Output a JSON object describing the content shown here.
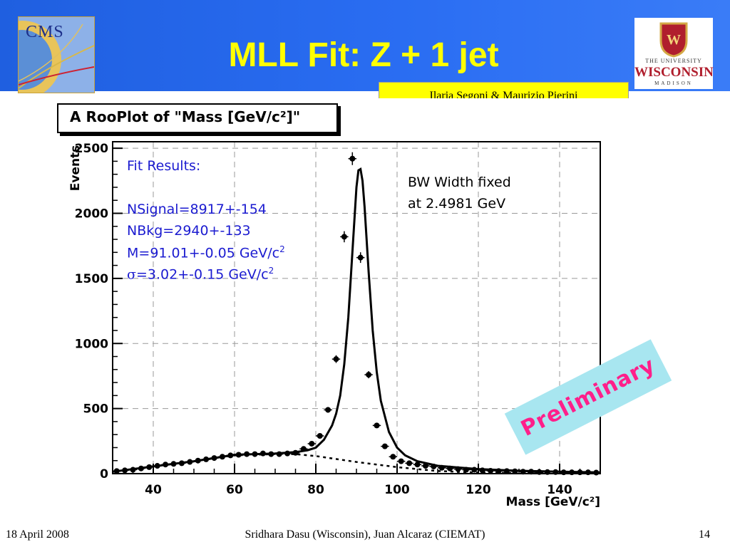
{
  "slide": {
    "title": "MLL Fit: Z + 1 jet",
    "authors": "Ilaria Segoni & Maurizio Pierini",
    "footer_date": "18 April 2008",
    "footer_center": "Sridhara Dasu (Wisconsin), Juan Alcaraz (CIEMAT)",
    "page_number": "14",
    "cms_logo_text": "CMS",
    "uw_logo": {
      "line1": "THE UNIVERSITY",
      "line2": "WISCONSIN",
      "line3": "MADISON",
      "crest_letter": "W"
    },
    "colors": {
      "header": "#2a6df2",
      "title": "#ffff00",
      "authors_bg": "#ffff00",
      "fit_text": "#1b1bd0",
      "preliminary": "#ff1f8a",
      "preliminary_bg": "#a8e6f0"
    }
  },
  "annotations": {
    "fit_results_heading": "Fit Results:",
    "nsignal": "NSignal=8917+-154",
    "nbkg": "NBkg=2940+-133",
    "mass_prefix": "M=91.01+-0.05 GeV/c",
    "sigma_symbol": "σ",
    "sigma_rest": "=3.02+-0.15 GeV/c",
    "sup2": "2",
    "bw_line1": "BW Width fixed",
    "bw_line2": "at 2.4981 GeV",
    "preliminary": "Preliminary"
  },
  "chart_data": {
    "type": "scatter",
    "title": "A RooPlot of \"Mass [GeV/c²]\"",
    "xlabel": "Mass [GeV/c²]",
    "ylabel": "Events",
    "xlim": [
      30,
      150
    ],
    "ylim": [
      0,
      2550
    ],
    "x_ticks": [
      40,
      60,
      80,
      100,
      120,
      140
    ],
    "y_ticks": [
      0,
      500,
      1000,
      1500,
      2000,
      2500
    ],
    "bin_width": 2,
    "series": [
      {
        "type": "points_with_errors",
        "x": [
          31,
          33,
          35,
          37,
          39,
          41,
          43,
          45,
          47,
          49,
          51,
          53,
          55,
          57,
          59,
          61,
          63,
          65,
          67,
          69,
          71,
          73,
          75,
          77,
          79,
          81,
          83,
          85,
          87,
          89,
          91,
          93,
          95,
          97,
          99,
          101,
          103,
          105,
          107,
          109,
          111,
          113,
          115,
          117,
          119,
          121,
          123,
          125,
          127,
          129,
          131,
          133,
          135,
          137,
          139,
          141,
          143,
          145,
          147,
          149
        ],
        "y": [
          20,
          25,
          30,
          40,
          50,
          60,
          70,
          75,
          80,
          90,
          100,
          110,
          120,
          130,
          140,
          145,
          150,
          150,
          155,
          150,
          150,
          155,
          160,
          190,
          230,
          290,
          490,
          880,
          1820,
          2420,
          1660,
          760,
          370,
          210,
          130,
          95,
          80,
          70,
          60,
          55,
          45,
          40,
          35,
          30,
          30,
          25,
          22,
          20,
          20,
          18,
          15,
          15,
          12,
          12,
          12,
          10,
          10,
          10,
          10,
          8
        ]
      },
      {
        "type": "fit_curve",
        "x": [
          30,
          40,
          50,
          55,
          60,
          65,
          70,
          75,
          78,
          80,
          82,
          84,
          85,
          86,
          87,
          88,
          89,
          90,
          90.5,
          91,
          91.5,
          92,
          93,
          94,
          95,
          96,
          98,
          100,
          102,
          105,
          110,
          120,
          130,
          140,
          150
        ],
        "y": [
          15,
          55,
          95,
          120,
          145,
          150,
          155,
          165,
          180,
          200,
          260,
          370,
          460,
          600,
          840,
          1200,
          1700,
          2200,
          2330,
          2340,
          2250,
          2050,
          1550,
          1100,
          780,
          560,
          320,
          200,
          140,
          95,
          60,
          35,
          22,
          15,
          10
        ]
      },
      {
        "type": "background_dashed",
        "x": [
          30,
          40,
          50,
          60,
          70,
          75,
          80,
          90,
          100,
          110,
          120,
          130,
          140,
          150
        ],
        "y": [
          15,
          55,
          95,
          140,
          150,
          150,
          135,
          90,
          50,
          20,
          8,
          4,
          2,
          1
        ]
      }
    ]
  }
}
